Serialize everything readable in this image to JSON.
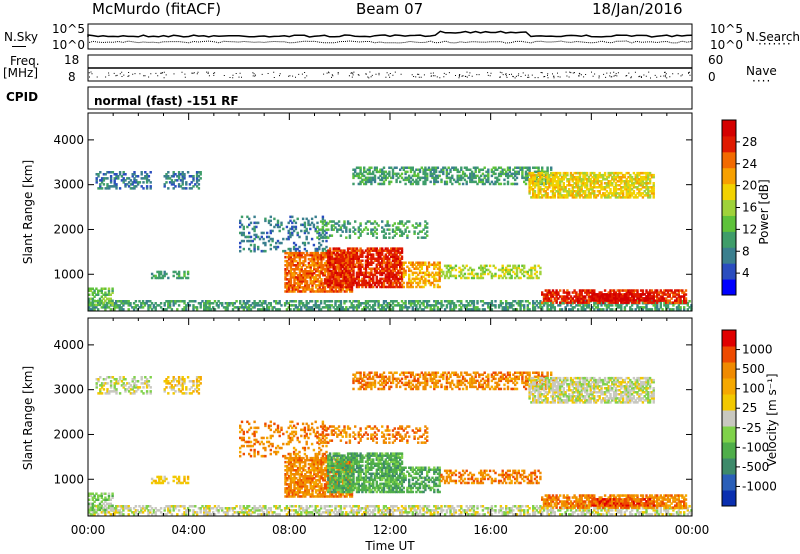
{
  "header": {
    "station": "McMurdo (fitACF)",
    "beam": "Beam 07",
    "date": "18/Jan/2016"
  },
  "summary_panel": {
    "n_sky_label": "N.Sky",
    "n_search_label": "N.Search",
    "noise_ticks_left": [
      "10^5",
      "10^0"
    ],
    "noise_ticks_right": [
      "10^5",
      "10^0"
    ],
    "freq_label": "Freq.",
    "freq_unit": "[MHz]",
    "freq_ticks": [
      "18",
      "8"
    ],
    "nave_label": "Nave",
    "nave_ticks": [
      "60",
      "0"
    ],
    "cpid_label": "CPID",
    "cpid_value": "normal (fast) -151 RF"
  },
  "colors": {
    "power_scale": [
      "#0000ff",
      "#2a4dbf",
      "#3a7f8e",
      "#3f9d6a",
      "#5ec23a",
      "#9fd23a",
      "#f2d200",
      "#f7a000",
      "#f26a00",
      "#e01a00",
      "#d40000"
    ],
    "velocity_scale": [
      "#0a2fb0",
      "#2a5fb8",
      "#3d8a6a",
      "#4fae4a",
      "#7fd24a",
      "#c8c8c0",
      "#f2c800",
      "#f5a800",
      "#f08a00",
      "#ee4a00",
      "#e00000"
    ],
    "ground_scatter": "#c8c8c0"
  },
  "chart_data": [
    {
      "type": "heatmap",
      "name": "power",
      "xlabel": "",
      "ylabel": "Slant Range [km]",
      "ylim": [
        180,
        4600
      ],
      "yticks": [
        1000,
        2000,
        3000,
        4000
      ],
      "xlim": [
        0,
        24
      ],
      "colorbar_label": "Power [dB]",
      "colorbar_ticks": [
        "4",
        "8",
        "12",
        "16",
        "20",
        "24",
        "28"
      ],
      "colorbar_range": [
        0,
        32
      ],
      "grid": false
    },
    {
      "type": "heatmap",
      "name": "velocity",
      "xlabel": "Time UT",
      "xticks": [
        "00:00",
        "04:00",
        "08:00",
        "12:00",
        "16:00",
        "20:00",
        "00:00"
      ],
      "ylabel": "Slant Range [km]",
      "ylim": [
        180,
        4600
      ],
      "yticks": [
        1000,
        2000,
        3000,
        4000
      ],
      "xlim": [
        0,
        24
      ],
      "colorbar_label": "Velocity [m s⁻¹]",
      "colorbar_ticks": [
        "1000",
        "500",
        "100",
        "25",
        "-25",
        "-100",
        "-500",
        "-1000"
      ],
      "grid": false
    }
  ]
}
